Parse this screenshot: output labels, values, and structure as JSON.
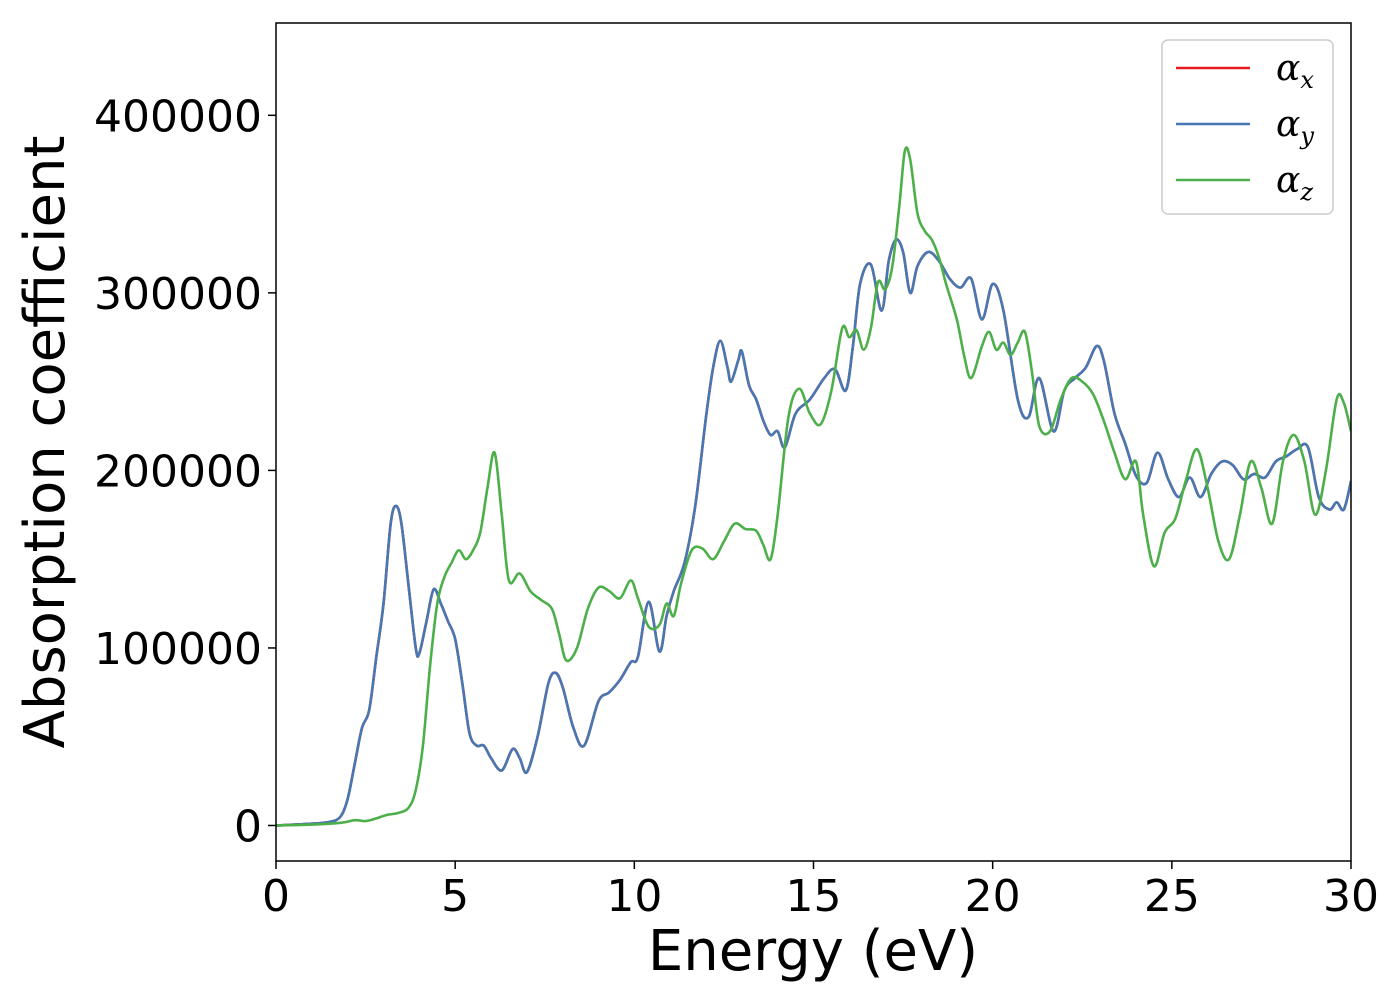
{
  "chart_data": {
    "type": "line",
    "title": "",
    "xlabel": "Energy (eV)",
    "ylabel": "Absorption coefficient",
    "xlim": [
      0,
      30
    ],
    "ylim": [
      -20000,
      452000
    ],
    "xticks": [
      0,
      5,
      10,
      15,
      20,
      25,
      30
    ],
    "yticks": [
      0,
      100000,
      200000,
      300000,
      400000
    ],
    "grid": false,
    "legend_position": "top-right",
    "series": [
      {
        "name": "α",
        "subscript": "x",
        "color": "#e41a1c",
        "x": [
          0,
          1,
          1.5,
          1.8,
          2.0,
          2.2,
          2.4,
          2.6,
          2.8,
          3.0,
          3.2,
          3.35,
          3.5,
          3.7,
          3.9,
          4.0,
          4.2,
          4.4,
          4.6,
          4.8,
          5.0,
          5.2,
          5.4,
          5.6,
          5.8,
          6.0,
          6.3,
          6.6,
          6.8,
          7.0,
          7.3,
          7.6,
          7.8,
          8.0,
          8.3,
          8.6,
          9.0,
          9.3,
          9.6,
          9.9,
          10.1,
          10.4,
          10.7,
          10.9,
          11.1,
          11.4,
          11.7,
          12.0,
          12.2,
          12.4,
          12.6,
          12.7,
          12.9,
          13.0,
          13.2,
          13.4,
          13.6,
          13.8,
          14.0,
          14.2,
          14.5,
          14.9,
          15.3,
          15.6,
          15.9,
          16.1,
          16.3,
          16.6,
          16.9,
          17.1,
          17.3,
          17.5,
          17.7,
          17.9,
          18.2,
          18.5,
          18.8,
          19.1,
          19.4,
          19.7,
          20.0,
          20.3,
          20.7,
          21.0,
          21.3,
          21.7,
          22.0,
          22.3,
          22.6,
          22.9,
          23.1,
          23.4,
          23.7,
          24.0,
          24.3,
          24.6,
          24.9,
          25.2,
          25.5,
          25.8,
          26.1,
          26.4,
          26.7,
          27.0,
          27.3,
          27.6,
          27.9,
          28.2,
          28.5,
          28.8,
          29.1,
          29.4,
          29.6,
          29.8,
          30.0
        ],
        "y": [
          0,
          1000,
          2000,
          5000,
          15000,
          35000,
          55000,
          65000,
          95000,
          125000,
          170000,
          180000,
          170000,
          135000,
          100000,
          97000,
          115000,
          133000,
          125000,
          115000,
          105000,
          80000,
          52000,
          45000,
          45000,
          38000,
          31000,
          43000,
          38000,
          30000,
          50000,
          80000,
          86000,
          78000,
          55000,
          45000,
          70000,
          75000,
          82000,
          92000,
          95000,
          126000,
          98000,
          118000,
          132000,
          148000,
          180000,
          230000,
          258000,
          273000,
          258000,
          250000,
          262000,
          267000,
          248000,
          240000,
          228000,
          220000,
          222000,
          213000,
          232000,
          240000,
          252000,
          257000,
          245000,
          270000,
          305000,
          316000,
          290000,
          318000,
          330000,
          323000,
          300000,
          315000,
          323000,
          318000,
          308000,
          303000,
          308000,
          285000,
          305000,
          290000,
          240000,
          230000,
          252000,
          222000,
          245000,
          252000,
          258000,
          270000,
          262000,
          232000,
          215000,
          197000,
          193000,
          210000,
          195000,
          185000,
          196000,
          185000,
          198000,
          205000,
          203000,
          195000,
          198000,
          196000,
          205000,
          208000,
          212000,
          213000,
          185000,
          178000,
          182000,
          178000,
          194000
        ]
      },
      {
        "name": "α",
        "subscript": "y",
        "color": "#4678b4",
        "x": [
          0,
          1,
          1.5,
          1.8,
          2.0,
          2.2,
          2.4,
          2.6,
          2.8,
          3.0,
          3.2,
          3.35,
          3.5,
          3.7,
          3.9,
          4.0,
          4.2,
          4.4,
          4.6,
          4.8,
          5.0,
          5.2,
          5.4,
          5.6,
          5.8,
          6.0,
          6.3,
          6.6,
          6.8,
          7.0,
          7.3,
          7.6,
          7.8,
          8.0,
          8.3,
          8.6,
          9.0,
          9.3,
          9.6,
          9.9,
          10.1,
          10.4,
          10.7,
          10.9,
          11.1,
          11.4,
          11.7,
          12.0,
          12.2,
          12.4,
          12.6,
          12.7,
          12.9,
          13.0,
          13.2,
          13.4,
          13.6,
          13.8,
          14.0,
          14.2,
          14.5,
          14.9,
          15.3,
          15.6,
          15.9,
          16.1,
          16.3,
          16.6,
          16.9,
          17.1,
          17.3,
          17.5,
          17.7,
          17.9,
          18.2,
          18.5,
          18.8,
          19.1,
          19.4,
          19.7,
          20.0,
          20.3,
          20.7,
          21.0,
          21.3,
          21.7,
          22.0,
          22.3,
          22.6,
          22.9,
          23.1,
          23.4,
          23.7,
          24.0,
          24.3,
          24.6,
          24.9,
          25.2,
          25.5,
          25.8,
          26.1,
          26.4,
          26.7,
          27.0,
          27.3,
          27.6,
          27.9,
          28.2,
          28.5,
          28.8,
          29.1,
          29.4,
          29.6,
          29.8,
          30.0
        ],
        "y": [
          0,
          1000,
          2000,
          5000,
          15000,
          35000,
          55000,
          65000,
          95000,
          125000,
          170000,
          180000,
          170000,
          135000,
          100000,
          97000,
          115000,
          133000,
          125000,
          115000,
          105000,
          80000,
          52000,
          45000,
          45000,
          38000,
          31000,
          43000,
          38000,
          30000,
          50000,
          80000,
          86000,
          78000,
          55000,
          45000,
          70000,
          75000,
          82000,
          92000,
          95000,
          126000,
          98000,
          118000,
          132000,
          148000,
          180000,
          230000,
          258000,
          273000,
          258000,
          250000,
          262000,
          267000,
          248000,
          240000,
          228000,
          220000,
          222000,
          213000,
          232000,
          240000,
          252000,
          257000,
          245000,
          270000,
          305000,
          316000,
          290000,
          318000,
          330000,
          323000,
          300000,
          315000,
          323000,
          318000,
          308000,
          303000,
          308000,
          285000,
          305000,
          290000,
          240000,
          230000,
          252000,
          222000,
          245000,
          252000,
          258000,
          270000,
          262000,
          232000,
          215000,
          197000,
          193000,
          210000,
          195000,
          185000,
          196000,
          185000,
          198000,
          205000,
          203000,
          195000,
          198000,
          196000,
          205000,
          208000,
          212000,
          213000,
          185000,
          178000,
          182000,
          178000,
          194000
        ]
      },
      {
        "name": "α",
        "subscript": "z",
        "color": "#4daf4a",
        "x": [
          0,
          1,
          1.8,
          2.2,
          2.5,
          2.8,
          3.1,
          3.4,
          3.7,
          3.9,
          4.1,
          4.3,
          4.5,
          4.7,
          4.9,
          5.1,
          5.3,
          5.5,
          5.7,
          5.9,
          6.1,
          6.3,
          6.5,
          6.8,
          7.1,
          7.4,
          7.7,
          7.9,
          8.1,
          8.4,
          8.7,
          9.0,
          9.3,
          9.6,
          9.9,
          10.1,
          10.4,
          10.7,
          10.9,
          11.1,
          11.3,
          11.6,
          11.9,
          12.2,
          12.5,
          12.8,
          13.1,
          13.4,
          13.6,
          13.8,
          14.0,
          14.3,
          14.6,
          14.9,
          15.2,
          15.5,
          15.8,
          16.0,
          16.2,
          16.4,
          16.6,
          16.8,
          17.0,
          17.2,
          17.4,
          17.55,
          17.7,
          17.9,
          18.1,
          18.3,
          18.5,
          18.7,
          19.0,
          19.2,
          19.4,
          19.7,
          19.9,
          20.1,
          20.3,
          20.5,
          20.7,
          20.9,
          21.1,
          21.3,
          21.6,
          21.9,
          22.2,
          22.5,
          22.8,
          23.1,
          23.4,
          23.7,
          24.0,
          24.2,
          24.5,
          24.8,
          25.1,
          25.4,
          25.7,
          26.0,
          26.3,
          26.6,
          26.9,
          27.2,
          27.5,
          27.8,
          28.1,
          28.4,
          28.7,
          29.0,
          29.3,
          29.6,
          29.8,
          30.0
        ],
        "y": [
          0,
          500,
          1500,
          3000,
          2500,
          4000,
          6000,
          7000,
          10000,
          20000,
          45000,
          90000,
          125000,
          140000,
          148000,
          155000,
          150000,
          155000,
          165000,
          190000,
          210000,
          175000,
          138000,
          142000,
          132000,
          127000,
          122000,
          108000,
          93000,
          100000,
          122000,
          134000,
          132000,
          128000,
          138000,
          128000,
          112000,
          113000,
          125000,
          118000,
          136000,
          155000,
          156000,
          150000,
          160000,
          170000,
          167000,
          166000,
          158000,
          150000,
          175000,
          230000,
          246000,
          232000,
          226000,
          245000,
          280000,
          275000,
          279000,
          268000,
          280000,
          306000,
          302000,
          315000,
          350000,
          380000,
          375000,
          345000,
          335000,
          330000,
          320000,
          305000,
          285000,
          265000,
          252000,
          270000,
          278000,
          268000,
          272000,
          265000,
          272000,
          278000,
          255000,
          225000,
          222000,
          240000,
          252000,
          250000,
          243000,
          228000,
          210000,
          195000,
          205000,
          175000,
          146000,
          165000,
          173000,
          195000,
          212000,
          190000,
          160000,
          150000,
          175000,
          205000,
          190000,
          170000,
          205000,
          220000,
          205000,
          175000,
          200000,
          240000,
          238000,
          222000
        ]
      }
    ]
  }
}
